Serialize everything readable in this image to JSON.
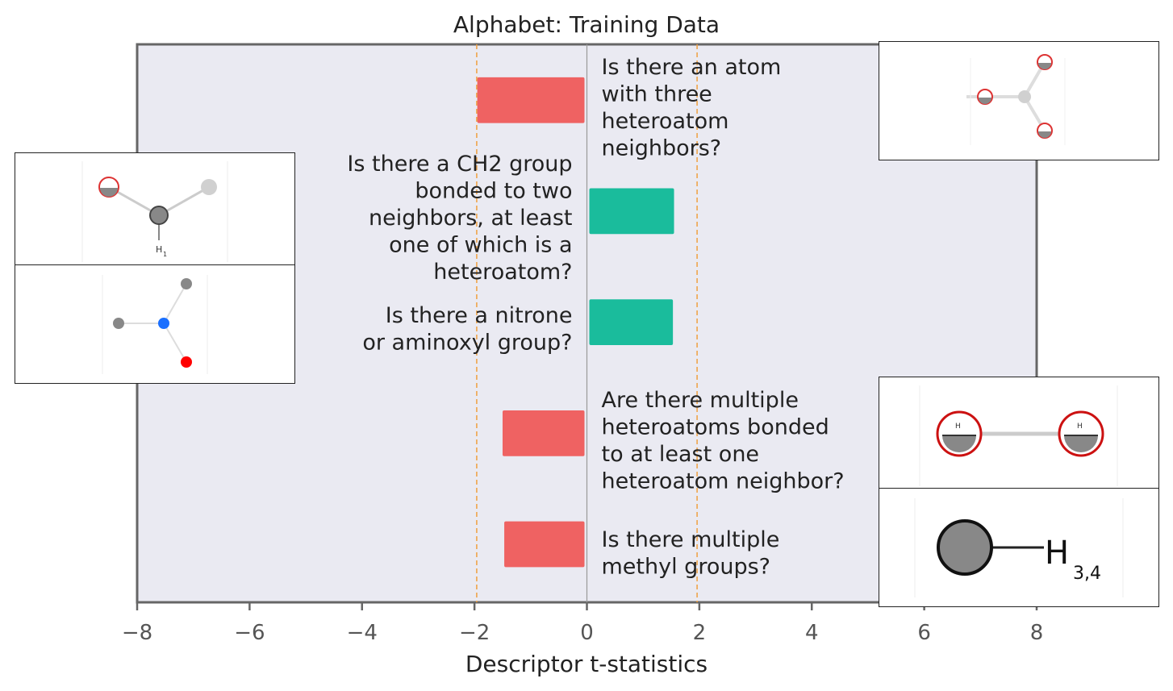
{
  "chart_data": {
    "type": "bar",
    "orientation": "horizontal",
    "title": "Alphabet: Training Data",
    "xlabel": "Descriptor t-statistics",
    "ylabel": "",
    "xlim": [
      -8,
      8
    ],
    "xticks": [
      -8,
      -6,
      -4,
      -2,
      0,
      2,
      4,
      6,
      8
    ],
    "xtick_labels": [
      "−8",
      "−6",
      "−4",
      "−2",
      "0",
      "2",
      "4",
      "6",
      "8"
    ],
    "threshold_lines": [
      -1.96,
      1.96
    ],
    "grid": false,
    "bars": [
      {
        "label": "Is there an atom with three heteroatom neighbors?",
        "lines": [
          "Is there an atom",
          "with three",
          "heteroatom",
          "neighbors?"
        ],
        "value": -1.95
      },
      {
        "label": "Is there a CH2 group bonded to two neighbors, at least one of which is a heteroatom?",
        "lines": [
          "Is there a CH2 group",
          "bonded to two",
          "neighbors, at least",
          "one of which is a",
          "heteroatom?"
        ],
        "value": 1.55
      },
      {
        "label": "Is there a nitrone or aminoxyl group?",
        "lines": [
          "Is there a nitrone",
          "or aminoxyl group?"
        ],
        "value": 1.53
      },
      {
        "label": "Are there multiple heteroatoms bonded to at least one heteroatom neighbor?",
        "lines": [
          "Are there multiple",
          "heteroatoms bonded",
          "to at least one",
          "heteroatom neighbor?"
        ],
        "value": -1.5
      },
      {
        "label": "Is there multiple methyl groups?",
        "lines": [
          "Is there multiple",
          "methyl groups?"
        ],
        "value": -1.47
      }
    ],
    "colors": {
      "negative": "#ef6262",
      "positive": "#1abc9c",
      "threshold": "#f0a040",
      "plot_bg": "#eaeaf2",
      "axis": "#666666"
    }
  },
  "insets": {
    "methyl_label": "H",
    "methyl_sub": "3,4",
    "h_label": "H",
    "h1_sub": "1"
  }
}
